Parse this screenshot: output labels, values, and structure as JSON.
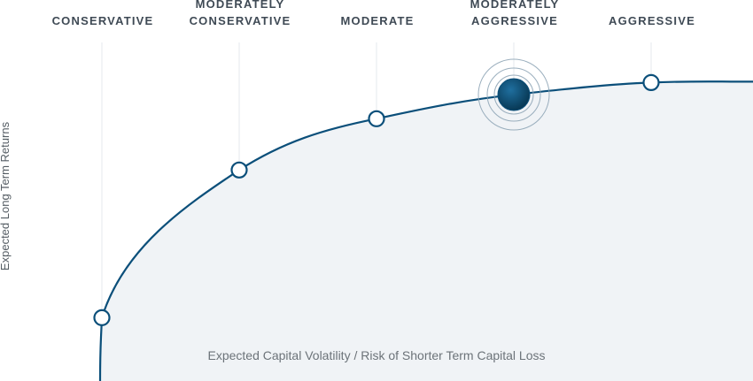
{
  "chart_data": {
    "type": "line",
    "categories": [
      [
        "CONSERVATIVE"
      ],
      [
        "MODERATELY",
        "CONSERVATIVE"
      ],
      [
        "MODERATE"
      ],
      [
        "MODERATELY",
        "AGGRESSIVE"
      ],
      [
        "AGGRESSIVE"
      ]
    ],
    "xlabel": "Expected Capital Volatility / Risk of Shorter Term Capital Loss",
    "ylabel": "Expected Long Term Returns",
    "series": [
      {
        "values": [
          0.21,
          0.7,
          0.87,
          0.95,
          0.99
        ]
      }
    ],
    "selected_index": 3,
    "ylim": [
      0,
      1
    ],
    "grid": true,
    "colors": {
      "line": "#0b4f7a",
      "selected_fill": "#0b4f7a",
      "marker_fill": "#ffffff",
      "area_fill": "#f0f3f6",
      "gridline": "#e6e9ec",
      "halo": "#8aa1b3"
    }
  }
}
